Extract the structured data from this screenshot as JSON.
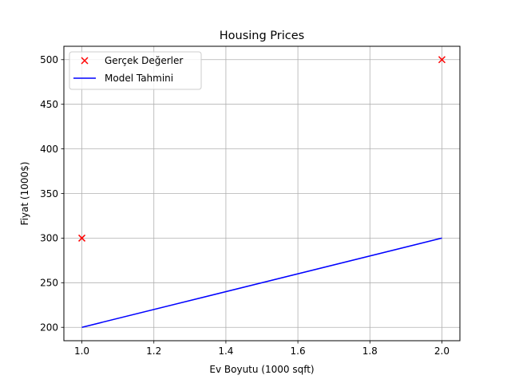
{
  "chart_data": {
    "type": "line",
    "title": "Housing Prices",
    "xlabel": "Ev Boyutu (1000 sqft)",
    "ylabel": "Fiyat (1000$)",
    "xlim": [
      0.95,
      2.05
    ],
    "ylim": [
      185,
      515
    ],
    "xticks": [
      1.0,
      1.2,
      1.4,
      1.6,
      1.8,
      2.0
    ],
    "xtick_labels": [
      "1.0",
      "1.2",
      "1.4",
      "1.6",
      "1.8",
      "2.0"
    ],
    "yticks": [
      200,
      250,
      300,
      350,
      400,
      450,
      500
    ],
    "ytick_labels": [
      "200",
      "250",
      "300",
      "350",
      "400",
      "450",
      "500"
    ],
    "grid": true,
    "legend_position": "top-left",
    "series": [
      {
        "name": "Gerçek Değerler",
        "kind": "scatter",
        "marker": "x",
        "color": "#ff0000",
        "x": [
          1.0,
          2.0
        ],
        "y": [
          300,
          500
        ]
      },
      {
        "name": "Model Tahmini",
        "kind": "line",
        "color": "#0000ff",
        "x": [
          1.0,
          2.0
        ],
        "y": [
          200,
          300
        ]
      }
    ]
  }
}
